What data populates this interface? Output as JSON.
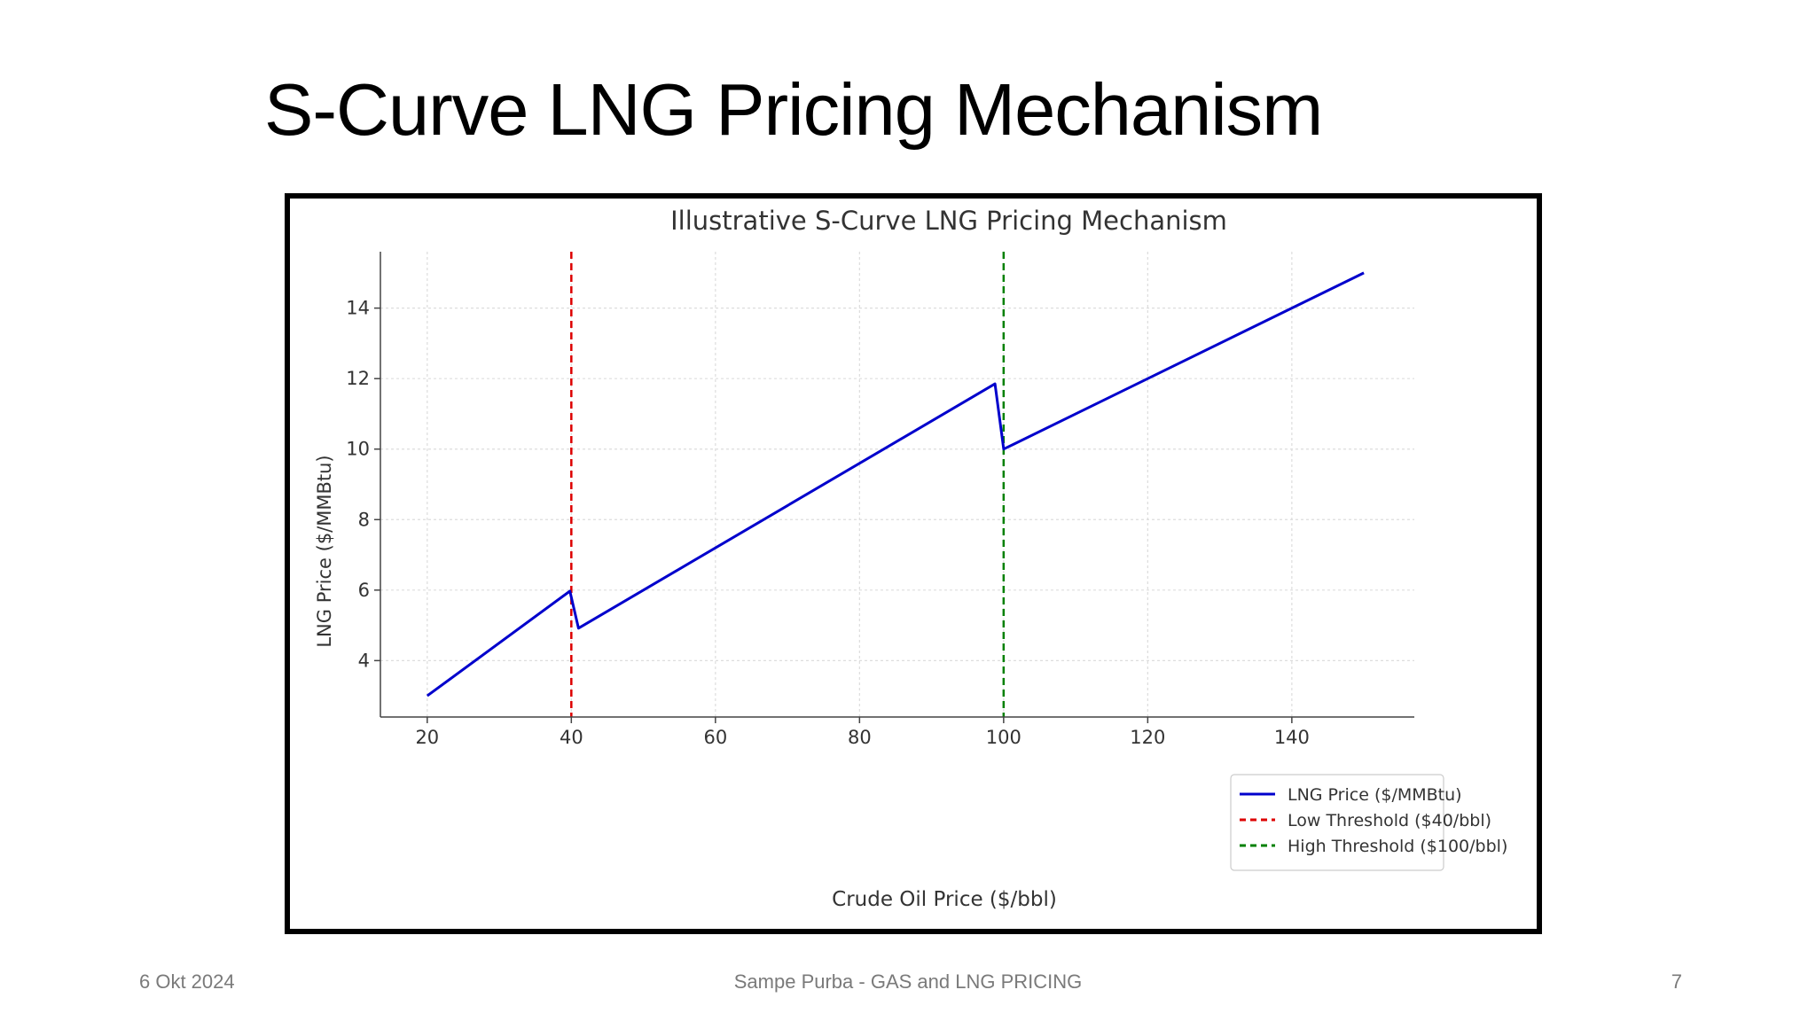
{
  "slide": {
    "title": "S-Curve LNG Pricing Mechanism",
    "footer_date": "6 Okt 2024",
    "footer_center": "Sampe Purba - GAS and LNG PRICING",
    "page_number": "7"
  },
  "chart_data": {
    "type": "line",
    "title": "Illustrative S-Curve LNG Pricing Mechanism",
    "xlabel": "Crude Oil Price ($/bbl)",
    "ylabel": "LNG Price ($/MMBtu)",
    "xlim": [
      13.5,
      157
    ],
    "ylim": [
      2.4,
      15.6
    ],
    "xticks": [
      20,
      40,
      60,
      80,
      100,
      120,
      140
    ],
    "yticks": [
      4,
      6,
      8,
      10,
      12,
      14
    ],
    "grid": true,
    "legend_position": "lower-right",
    "series": [
      {
        "name": "LNG Price ($/MMBtu)",
        "color": "#0000cc",
        "style": "solid",
        "x": [
          20,
          39.8,
          41,
          98.8,
          100,
          150
        ],
        "y": [
          3.0,
          5.97,
          4.92,
          11.85,
          10.0,
          15.0
        ]
      },
      {
        "name": "Low Threshold ($40/bbl)",
        "color": "#dd0000",
        "style": "dashed",
        "vline": 40
      },
      {
        "name": "High Threshold ($100/bbl)",
        "color": "#008000",
        "style": "dashed",
        "vline": 100
      }
    ]
  }
}
